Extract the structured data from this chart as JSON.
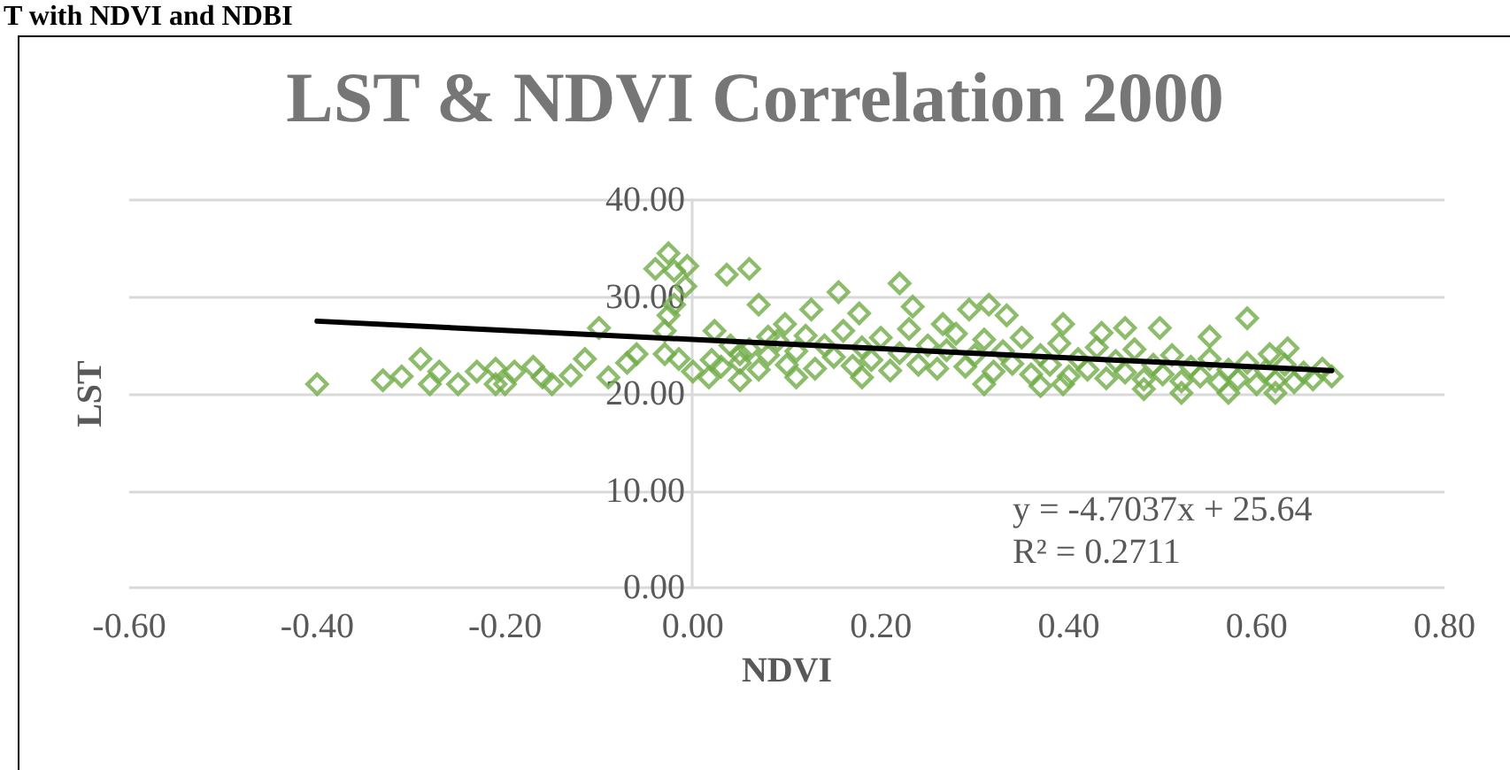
{
  "chart_data": {
    "type": "scatter",
    "title": "LST & NDVI Correlation 2000",
    "xlabel": "NDVI",
    "ylabel": "LST",
    "annotations": [
      "T with NDVI and NDBI",
      "y = -4.7037x + 25.64",
      "R² = 0.2711"
    ],
    "xlim": [
      -0.6,
      0.8
    ],
    "xticks": [
      {
        "value": -0.6,
        "label": "-0.60"
      },
      {
        "value": -0.4,
        "label": "-0.40"
      },
      {
        "value": -0.2,
        "label": "-0.20"
      },
      {
        "value": 0,
        "label": "0.00"
      },
      {
        "value": 0.2,
        "label": "0.20"
      },
      {
        "value": 0.4,
        "label": "0.40"
      },
      {
        "value": 0.6,
        "label": "0.60"
      },
      {
        "value": 0.8,
        "label": "0.80"
      }
    ],
    "ylim": [
      0,
      40
    ],
    "yticks": [
      {
        "value": 0,
        "label": "0.00"
      },
      {
        "value": 10,
        "label": "10.00"
      },
      {
        "value": 20,
        "label": "20.00"
      },
      {
        "value": 30,
        "label": "30.00"
      },
      {
        "value": 40,
        "label": "40.00"
      }
    ],
    "grid": "y",
    "marker": "diamond",
    "series": [
      {
        "color": "#70ad47",
        "x": [
          -0.4,
          -0.33,
          -0.31,
          -0.29,
          -0.28,
          -0.27,
          -0.25,
          -0.23,
          -0.21,
          -0.21,
          -0.2,
          -0.19,
          -0.17,
          -0.16,
          -0.15,
          -0.13,
          -0.115,
          -0.1,
          -0.09,
          -0.07,
          -0.06,
          -0.04,
          -0.026,
          -0.02,
          -0.006,
          -0.008,
          -0.02,
          -0.026,
          -0.03,
          -0.03,
          0.0,
          -0.015,
          0.036,
          0.06,
          0.07,
          0.023,
          0.017,
          0.05,
          0.08,
          0.155,
          0.22,
          0.126,
          0.177,
          0.234,
          0.294,
          0.315,
          0.334,
          0.394,
          0.435,
          0.46,
          0.497,
          0.55,
          0.59,
          0.614,
          0.633,
          0.266,
          0.098,
          0.37,
          0.394,
          0.48,
          0.52,
          0.31,
          0.18,
          0.11,
          0.05,
          0.57,
          0.62,
          0.02,
          0.03,
          0.04,
          0.05,
          0.06,
          0.07,
          0.08,
          0.09,
          0.1,
          0.11,
          0.12,
          0.13,
          0.14,
          0.15,
          0.16,
          0.17,
          0.18,
          0.19,
          0.2,
          0.21,
          0.22,
          0.23,
          0.24,
          0.25,
          0.26,
          0.27,
          0.28,
          0.29,
          0.3,
          0.31,
          0.32,
          0.33,
          0.34,
          0.35,
          0.36,
          0.37,
          0.38,
          0.39,
          0.4,
          0.41,
          0.42,
          0.43,
          0.44,
          0.45,
          0.46,
          0.47,
          0.48,
          0.49,
          0.5,
          0.51,
          0.52,
          0.53,
          0.54,
          0.55,
          0.56,
          0.57,
          0.58,
          0.59,
          0.6,
          0.61,
          0.62,
          0.63,
          0.64,
          0.65,
          0.66,
          0.67,
          0.68
        ],
        "values": [
          21.0,
          21.4,
          21.8,
          23.6,
          21.0,
          22.3,
          21.0,
          22.3,
          22.6,
          21.0,
          21.0,
          22.3,
          22.8,
          21.7,
          21.0,
          21.9,
          23.6,
          26.8,
          21.7,
          23.2,
          24.1,
          32.9,
          34.5,
          32.7,
          33.2,
          31.1,
          29.2,
          28.1,
          26.5,
          24.1,
          22.3,
          23.6,
          32.3,
          32.9,
          29.2,
          26.5,
          21.7,
          24.1,
          25.9,
          30.5,
          31.4,
          28.7,
          28.3,
          29.0,
          28.7,
          29.2,
          28.1,
          27.2,
          26.3,
          26.8,
          26.8,
          25.9,
          27.8,
          24.1,
          24.7,
          27.2,
          27.2,
          20.8,
          21.0,
          20.5,
          20.1,
          21.0,
          21.7,
          21.7,
          21.4,
          20.1,
          20.1,
          23.5,
          22.8,
          25.0,
          23.2,
          24.6,
          22.5,
          24.0,
          25.5,
          23.0,
          24.4,
          26.0,
          22.6,
          25.0,
          23.8,
          26.5,
          22.9,
          24.8,
          23.5,
          25.8,
          22.4,
          24.2,
          26.7,
          23.0,
          25.0,
          22.6,
          24.5,
          26.2,
          22.8,
          24.0,
          25.6,
          22.3,
          24.4,
          23.1,
          25.8,
          22.0,
          24.0,
          23.0,
          25.2,
          21.8,
          23.6,
          22.5,
          24.8,
          21.6,
          23.4,
          22.2,
          24.6,
          21.5,
          23.0,
          22.0,
          24.0,
          21.3,
          22.8,
          21.8,
          23.6,
          21.2,
          22.5,
          21.5,
          23.2,
          21.0,
          22.4,
          21.3,
          23.0,
          21.2,
          22.2,
          21.5,
          22.6,
          21.8
        ]
      },
      {
        "type": "line",
        "color": "#000000",
        "marker": "none",
        "line_style": "solid",
        "x": [
          -0.4,
          0.68
        ],
        "values": [
          27.5,
          22.4
        ]
      }
    ]
  }
}
